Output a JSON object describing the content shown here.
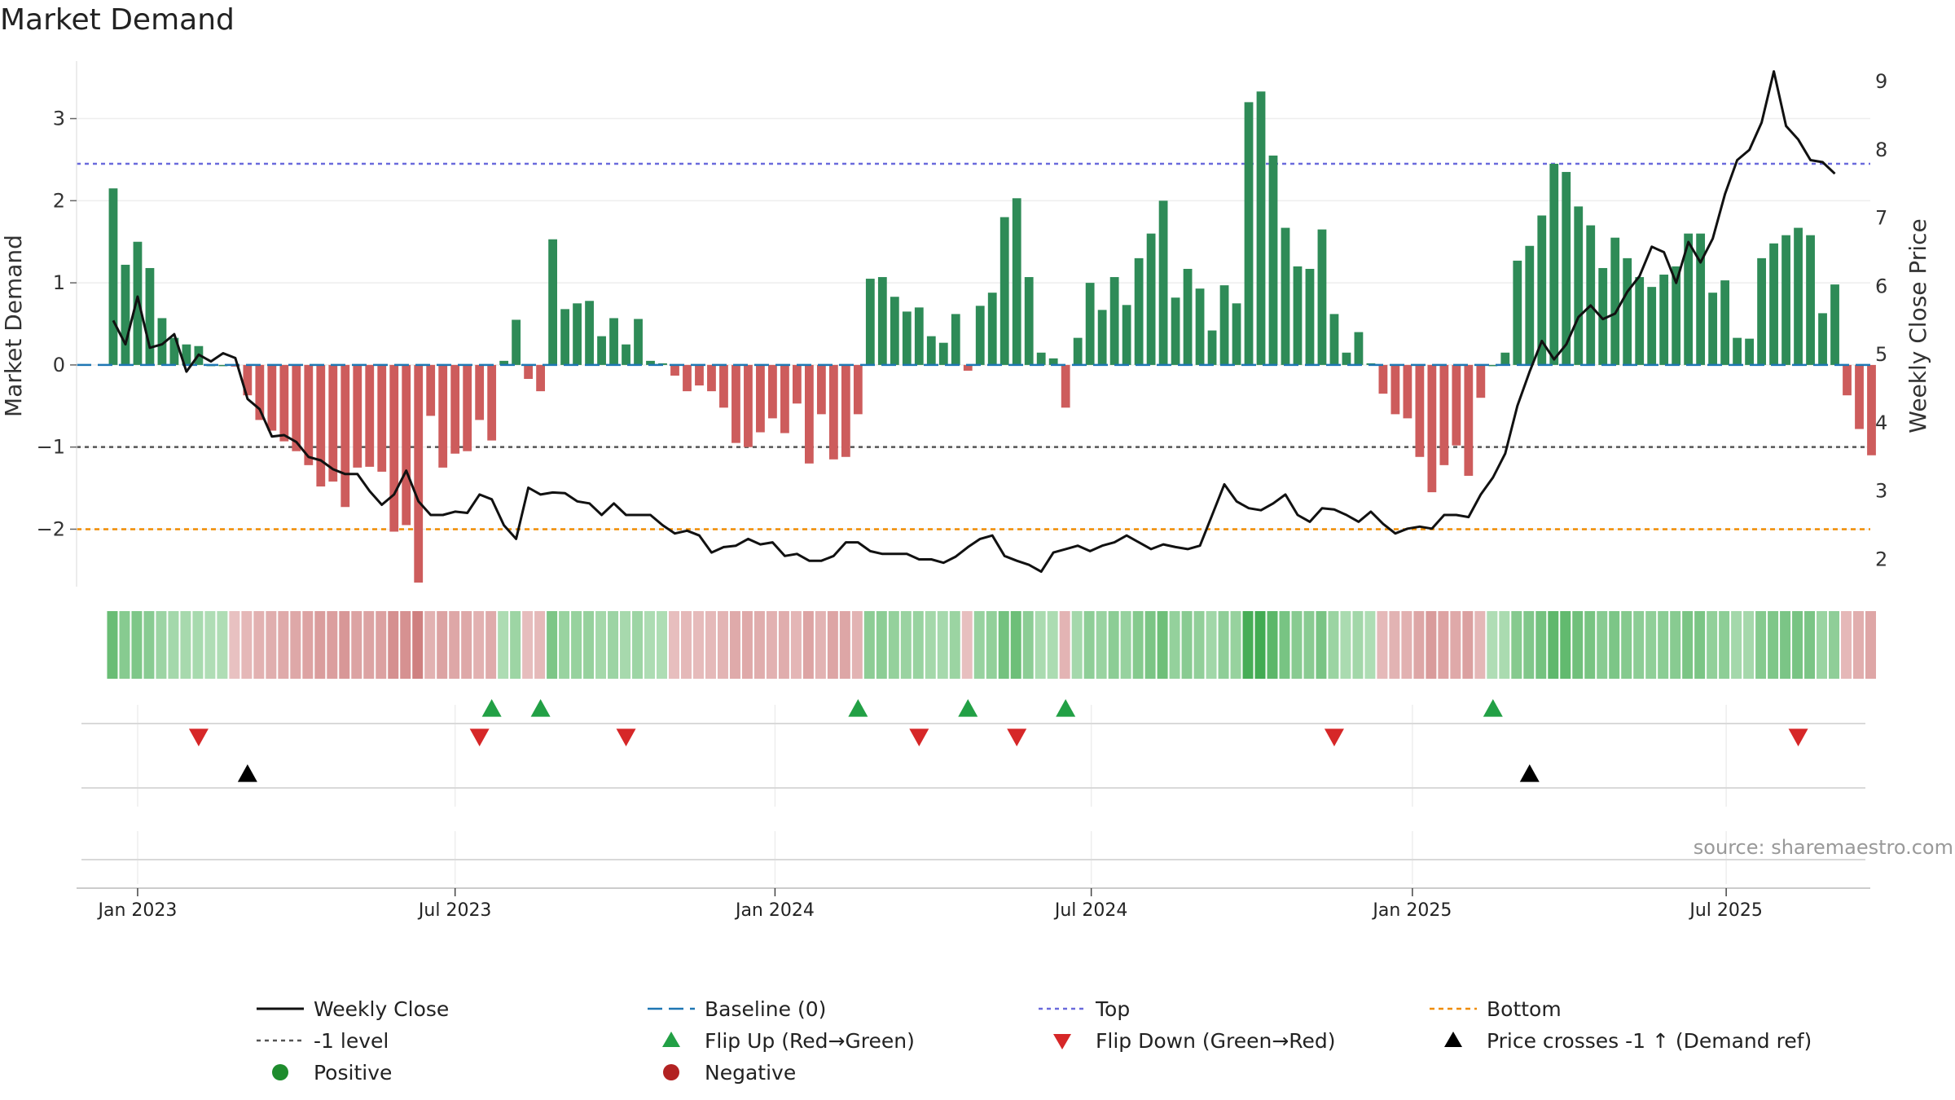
{
  "title": "Market Demand",
  "source": "source: sharemaestro.com",
  "colors": {
    "positive_bar": "#2e8b57",
    "negative_bar": "#cd5c5c",
    "price_line": "#111111",
    "baseline": "#1f77b4",
    "top": "#6a6adc",
    "neg1": "#555555",
    "bottom": "#f08c00",
    "flip_up": "#22a045",
    "flip_down": "#d62728",
    "cross": "#000000",
    "positive_dot": "#1e8c2d",
    "negative_dot": "#b22222"
  },
  "chart_data": {
    "type": "bar",
    "title": "Market Demand",
    "ylabel": "Market Demand",
    "y2label": "Weekly Close Price",
    "ylim": [
      -2.7,
      3.7
    ],
    "y2lim": [
      1.6,
      9.3
    ],
    "yticks": [
      3,
      2,
      1,
      0,
      -1,
      -2
    ],
    "ytick_labels": [
      "3",
      "2",
      "1",
      "0",
      "−1",
      "−2"
    ],
    "y2ticks": [
      9,
      8,
      7,
      6,
      5,
      4,
      3,
      2
    ],
    "x_range_weeks": [
      -3.0,
      143.9
    ],
    "x_ticks": [
      {
        "week": 2.0,
        "label": "Jan 2023"
      },
      {
        "week": 28.0,
        "label": "Jul 2023"
      },
      {
        "week": 54.2,
        "label": "Jan 2024"
      },
      {
        "week": 80.1,
        "label": "Jul 2024"
      },
      {
        "week": 106.4,
        "label": "Jan 2025"
      },
      {
        "week": 132.1,
        "label": "Jul 2025"
      }
    ],
    "levels": {
      "baseline": 0,
      "top": 2.45,
      "minus_one": -1,
      "bottom": -2
    },
    "demand": [
      2.15,
      1.22,
      1.5,
      1.18,
      0.57,
      0.33,
      0.25,
      0.23,
      0.0,
      0.0,
      -0.02,
      -0.37,
      -0.67,
      -0.8,
      -0.93,
      -1.05,
      -1.22,
      -1.48,
      -1.42,
      -1.73,
      -1.25,
      -1.24,
      -1.3,
      -2.03,
      -1.95,
      -2.65,
      -0.62,
      -1.25,
      -1.08,
      -1.05,
      -0.67,
      -0.92,
      0.05,
      0.55,
      -0.17,
      -0.32,
      1.53,
      0.68,
      0.75,
      0.78,
      0.35,
      0.57,
      0.25,
      0.56,
      0.05,
      0.02,
      -0.13,
      -0.32,
      -0.25,
      -0.32,
      -0.52,
      -0.95,
      -1.0,
      -0.82,
      -0.65,
      -0.83,
      -0.47,
      -1.2,
      -0.6,
      -1.15,
      -1.12,
      -0.6,
      1.05,
      1.07,
      0.83,
      0.65,
      0.7,
      0.35,
      0.27,
      0.62,
      -0.07,
      0.72,
      0.88,
      1.8,
      2.03,
      1.07,
      0.15,
      0.08,
      -0.52,
      0.33,
      1.0,
      0.67,
      1.07,
      0.73,
      1.3,
      1.6,
      2.0,
      0.82,
      1.17,
      0.93,
      0.42,
      0.97,
      0.75,
      3.2,
      3.33,
      2.55,
      1.67,
      1.2,
      1.17,
      1.65,
      0.62,
      0.15,
      0.4,
      0.02,
      -0.35,
      -0.6,
      -0.65,
      -1.12,
      -1.55,
      -1.22,
      -0.98,
      -1.35,
      -0.4,
      0.0,
      0.15,
      1.27,
      1.45,
      1.82,
      2.45,
      2.35,
      1.93,
      1.7,
      1.18,
      1.55,
      1.3,
      1.07,
      0.95,
      1.1,
      1.2,
      1.6,
      1.6,
      0.88,
      1.03,
      0.33,
      0.32,
      1.3,
      1.48,
      1.58,
      1.67,
      1.58,
      0.63,
      0.98,
      -0.37,
      -0.78,
      -1.1
    ],
    "price": [
      5.5,
      5.15,
      5.85,
      5.1,
      5.15,
      5.3,
      4.75,
      5.0,
      4.9,
      5.02,
      4.95,
      4.35,
      4.2,
      3.8,
      3.82,
      3.72,
      3.5,
      3.45,
      3.32,
      3.25,
      3.25,
      3.0,
      2.8,
      2.95,
      3.3,
      2.85,
      2.65,
      2.65,
      2.7,
      2.68,
      2.95,
      2.88,
      2.5,
      2.3,
      3.05,
      2.95,
      2.98,
      2.97,
      2.85,
      2.82,
      2.65,
      2.82,
      2.65,
      2.65,
      2.65,
      2.5,
      2.38,
      2.42,
      2.35,
      2.1,
      2.18,
      2.2,
      2.3,
      2.22,
      2.25,
      2.05,
      2.08,
      1.98,
      1.98,
      2.05,
      2.25,
      2.25,
      2.12,
      2.08,
      2.08,
      2.08,
      2.0,
      2.0,
      1.95,
      2.04,
      2.18,
      2.3,
      2.35,
      2.05,
      1.98,
      1.92,
      1.82,
      2.1,
      2.15,
      2.2,
      2.12,
      2.2,
      2.25,
      2.35,
      2.25,
      2.15,
      2.22,
      2.18,
      2.15,
      2.2,
      2.65,
      3.1,
      2.85,
      2.75,
      2.72,
      2.82,
      2.95,
      2.65,
      2.55,
      2.75,
      2.73,
      2.65,
      2.55,
      2.7,
      2.52,
      2.38,
      2.45,
      2.48,
      2.45,
      2.65,
      2.65,
      2.62,
      2.95,
      3.2,
      3.55,
      4.25,
      4.75,
      5.2,
      4.93,
      5.15,
      5.55,
      5.72,
      5.52,
      5.6,
      5.92,
      6.15,
      6.58,
      6.5,
      6.05,
      6.65,
      6.35,
      6.7,
      7.35,
      7.85,
      8.0,
      8.4,
      9.15,
      8.35,
      8.15,
      7.85,
      7.82,
      7.65
    ],
    "flip_up_weeks": [
      31,
      35,
      61,
      70,
      78,
      113
    ],
    "flip_down_weeks": [
      7,
      30,
      42,
      66,
      74,
      100,
      138
    ],
    "price_cross_weeks": [
      11,
      116
    ],
    "legend": [
      {
        "label": "Weekly Close",
        "key": "weekly-close"
      },
      {
        "label": "Baseline (0)",
        "key": "baseline"
      },
      {
        "label": "Top",
        "key": "top"
      },
      {
        "label": "Bottom",
        "key": "bottom"
      },
      {
        "label": "-1 level",
        "key": "minus-one-level"
      },
      {
        "label": "Flip Up (Red→Green)",
        "key": "flip-up"
      },
      {
        "label": "Flip Down (Green→Red)",
        "key": "flip-down"
      },
      {
        "label": "Price crosses -1 ↑ (Demand ref)",
        "key": "price-cross"
      },
      {
        "label": "Positive",
        "key": "positive"
      },
      {
        "label": "Negative",
        "key": "negative"
      }
    ]
  }
}
